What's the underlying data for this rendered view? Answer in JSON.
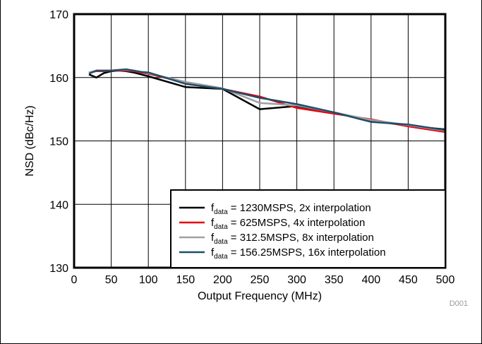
{
  "chart_data": {
    "type": "line",
    "xlabel": "Output Frequency (MHz)",
    "ylabel": "NSD (dBc/Hz)",
    "xlim": [
      0,
      500
    ],
    "ylim": [
      130,
      170
    ],
    "x_ticks": [
      "0",
      "50",
      "100",
      "150",
      "200",
      "250",
      "300",
      "350",
      "400",
      "450",
      "500"
    ],
    "y_ticks": [
      "130",
      "140",
      "150",
      "160",
      "170"
    ],
    "grid": true,
    "legend_position": "bottom-right",
    "watermark": "D001",
    "series": [
      {
        "name_main": "f",
        "name_sub": "data",
        "name_rest": " = 1230MSPS, 2x interpolation",
        "color": "#000000",
        "x": [
          20,
          30,
          40,
          50,
          60,
          70,
          80,
          90,
          100,
          150,
          200,
          250,
          300,
          350,
          400,
          450,
          500
        ],
        "y": [
          160.5,
          160.0,
          160.7,
          161.0,
          161.1,
          161.0,
          160.8,
          160.5,
          160.2,
          158.5,
          158.2,
          155.0,
          155.5,
          154.5,
          153.2,
          152.4,
          151.8
        ]
      },
      {
        "name_main": "f",
        "name_sub": "data",
        "name_rest": " = 625MSPS, 4x interpolation",
        "color": "#e8000b",
        "x": [
          20,
          30,
          40,
          50,
          60,
          70,
          80,
          90,
          100,
          150,
          200,
          250,
          300,
          350,
          400,
          450,
          500
        ],
        "y": [
          160.8,
          161.0,
          161.0,
          161.1,
          161.1,
          161.1,
          161.0,
          160.8,
          160.6,
          159.2,
          158.2,
          157.0,
          155.2,
          154.3,
          153.4,
          152.3,
          151.4
        ]
      },
      {
        "name_main": "f",
        "name_sub": "data",
        "name_rest": " = 312.5MSPS, 8x interpolation",
        "color": "#a0a0a0",
        "x": [
          20,
          30,
          40,
          50,
          60,
          70,
          80,
          90,
          100,
          150,
          200,
          250,
          300,
          350,
          400,
          450,
          500
        ],
        "y": [
          160.8,
          161.1,
          161.1,
          161.1,
          161.2,
          161.2,
          161.1,
          160.9,
          160.7,
          159.3,
          158.3,
          156.0,
          155.6,
          154.5,
          153.3,
          152.5,
          151.6
        ]
      },
      {
        "name_main": "f",
        "name_sub": "data",
        "name_rest": " = 156.25MSPS, 16x interpolation",
        "color": "#1f4e6b",
        "x": [
          20,
          30,
          40,
          50,
          60,
          70,
          80,
          90,
          100,
          150,
          200,
          250,
          300,
          350,
          400,
          450,
          500
        ],
        "y": [
          160.6,
          161.1,
          161.1,
          161.1,
          161.2,
          161.3,
          161.1,
          160.9,
          160.8,
          159.0,
          158.2,
          156.8,
          155.8,
          154.5,
          153.0,
          152.6,
          151.7
        ]
      }
    ]
  }
}
